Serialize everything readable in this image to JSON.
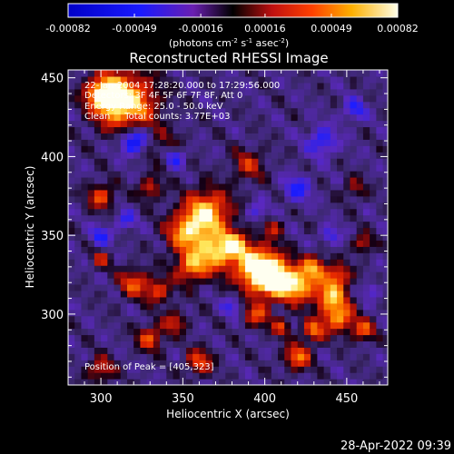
{
  "chart_data": {
    "type": "heatmap",
    "title": "Reconstructed RHESSI Image",
    "xlabel": "Heliocentric X (arcsec)",
    "ylabel": "Heliocentric Y (arcsec)",
    "xlim": [
      280,
      475
    ],
    "ylim": [
      255,
      455
    ],
    "x_ticks": [
      "300",
      "350",
      "400",
      "450"
    ],
    "y_ticks": [
      "300",
      "350",
      "400",
      "450"
    ],
    "colorbar": {
      "ticks": [
        "-0.00082",
        "-0.00049",
        "-0.00016",
        "0.00016",
        "0.00049",
        "0.00082"
      ],
      "unit_label": [
        "(photons cm",
        "-2",
        " s",
        "-1",
        " asec",
        "-2",
        ")"
      ],
      "range": [
        -0.00082,
        0.00082
      ]
    },
    "annotations": [
      "22-Jan-2004 17:28:20.000 to 17:29:56.000",
      "Detectors: 3F 4F 5F 6F 7F 8F, Att 0",
      "Energy Range: 25.0 - 50.0 keV",
      "Clean     Total counts: 3.77E+03"
    ],
    "peak_label": "Position of Peak = [405,323]",
    "peak": [
      405,
      323
    ],
    "blobs": [
      [
        315,
        435,
        18,
        1.0
      ],
      [
        302,
        440,
        10,
        0.9
      ],
      [
        340,
        405,
        12,
        0.3
      ],
      [
        300,
        375,
        8,
        0.6
      ],
      [
        330,
        380,
        7,
        0.5
      ],
      [
        390,
        395,
        10,
        0.45
      ],
      [
        352,
        352,
        12,
        0.75
      ],
      [
        365,
        365,
        14,
        0.9
      ],
      [
        370,
        340,
        12,
        0.85
      ],
      [
        355,
        330,
        10,
        0.7
      ],
      [
        382,
        345,
        8,
        0.65
      ],
      [
        395,
        330,
        14,
        1.0
      ],
      [
        405,
        323,
        12,
        1.0
      ],
      [
        420,
        318,
        10,
        0.85
      ],
      [
        440,
        312,
        10,
        0.8
      ],
      [
        430,
        330,
        8,
        0.7
      ],
      [
        445,
        325,
        7,
        0.6
      ],
      [
        320,
        320,
        9,
        0.6
      ],
      [
        335,
        315,
        8,
        0.55
      ],
      [
        345,
        295,
        7,
        0.5
      ],
      [
        330,
        285,
        8,
        0.6
      ],
      [
        395,
        300,
        8,
        0.55
      ],
      [
        410,
        292,
        6,
        0.5
      ],
      [
        430,
        290,
        7,
        0.65
      ],
      [
        445,
        298,
        9,
        0.75
      ],
      [
        460,
        290,
        7,
        0.6
      ],
      [
        420,
        273,
        8,
        0.7
      ],
      [
        360,
        270,
        8,
        0.6
      ],
      [
        300,
        265,
        8,
        0.5
      ],
      [
        460,
        345,
        6,
        0.5
      ],
      [
        405,
        355,
        6,
        0.4
      ],
      [
        300,
        335,
        6,
        0.4
      ],
      [
        455,
        380,
        7,
        0.35
      ]
    ],
    "negatives": [
      [
        320,
        410,
        8,
        -0.8
      ],
      [
        345,
        400,
        7,
        -0.6
      ],
      [
        435,
        410,
        9,
        -0.5
      ],
      [
        455,
        430,
        7,
        -0.45
      ],
      [
        300,
        350,
        6,
        -0.5
      ],
      [
        315,
        360,
        6,
        -0.4
      ],
      [
        420,
        380,
        8,
        -0.5
      ],
      [
        395,
        365,
        6,
        -0.35
      ],
      [
        440,
        350,
        6,
        -0.4
      ],
      [
        380,
        305,
        6,
        -0.4
      ],
      [
        465,
        315,
        5,
        -0.35
      ]
    ]
  },
  "footer_timestamp": "28-Apr-2022 09:39"
}
